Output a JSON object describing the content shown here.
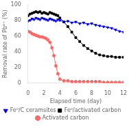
{
  "chart_data": {
    "type": "line",
    "xlabel": "Elapsed time (day)",
    "ylabel": "Removal rate of Pb²⁺ (%)",
    "xlim": [
      0,
      12
    ],
    "ylim": [
      0,
      100
    ],
    "xticks": [
      0,
      2,
      4,
      6,
      8,
      10,
      12
    ],
    "yticks": [
      0,
      20,
      40,
      60,
      80,
      100
    ],
    "x": [
      0,
      0.25,
      0.5,
      0.75,
      1.0,
      1.25,
      1.5,
      1.75,
      2.0,
      2.25,
      2.5,
      2.75,
      3.0,
      3.25,
      3.5,
      3.75,
      4.0,
      4.5,
      5.0,
      5.5,
      6.0,
      6.5,
      7.0,
      7.5,
      8.0,
      8.5,
      9.0,
      9.5,
      10.0,
      10.5,
      11.0,
      11.5,
      12.0
    ],
    "series": [
      {
        "name": "Fe⁰/C ceramsites",
        "color": "blue",
        "marker": "triangle_down",
        "values": [
          79,
          80,
          82,
          81,
          83,
          82,
          81,
          83,
          82,
          81,
          80,
          82,
          81,
          80,
          79,
          81,
          80,
          78,
          79,
          77,
          78,
          76,
          77,
          75,
          76,
          74,
          73,
          72,
          71,
          70,
          68,
          66,
          65
        ]
      },
      {
        "name": "Fe⁰/activated carbon",
        "color": "black",
        "marker": "square",
        "values": [
          86,
          88,
          89,
          90,
          91,
          90,
          91,
          89,
          90,
          89,
          88,
          90,
          89,
          88,
          87,
          86,
          83,
          78,
          72,
          65,
          58,
          53,
          48,
          44,
          41,
          38,
          36,
          35,
          34,
          34,
          33,
          33,
          33
        ]
      },
      {
        "name": "Activated carbon",
        "color": "#ff6666",
        "marker": "circle",
        "values": [
          66,
          65,
          63,
          62,
          61,
          60,
          59,
          59,
          58,
          57,
          55,
          52,
          45,
          35,
          22,
          12,
          5,
          3,
          3,
          2,
          2,
          2,
          2,
          2,
          2,
          2,
          2,
          1,
          1,
          1,
          1,
          1,
          1
        ]
      }
    ],
    "grid": false,
    "legend": "bottom"
  }
}
